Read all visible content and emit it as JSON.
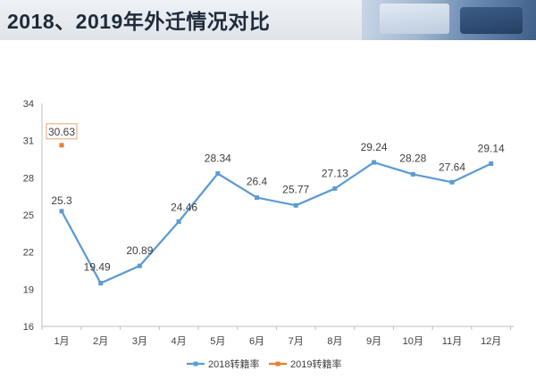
{
  "page": {
    "title": "2018、2019年外迁情况对比"
  },
  "colors": {
    "series_2018": "#5b9bd5",
    "series_2019": "#ed7d31",
    "axis": "#bfbfbf",
    "text": "#404040"
  },
  "chart_data": {
    "type": "line",
    "title": "",
    "xlabel": "",
    "ylabel": "",
    "categories": [
      "1月",
      "2月",
      "3月",
      "4月",
      "5月",
      "6月",
      "7月",
      "8月",
      "9月",
      "10月",
      "11月",
      "12月"
    ],
    "ylim": [
      16,
      34
    ],
    "yticks": [
      16,
      19,
      22,
      25,
      28,
      31,
      34
    ],
    "grid": false,
    "legend_position": "bottom",
    "series": [
      {
        "name": "2018转籍率",
        "color": "#5b9bd5",
        "values": [
          25.3,
          19.49,
          20.89,
          24.46,
          28.34,
          26.4,
          25.77,
          27.13,
          29.24,
          28.28,
          27.64,
          29.14
        ],
        "labels": [
          "25.3",
          "19.49",
          "20.89",
          "24.46",
          "28.34",
          "26.4",
          "25.77",
          "27.13",
          "29.24",
          "28.28",
          "27.64",
          "29.14"
        ]
      },
      {
        "name": "2019转籍率",
        "color": "#ed7d31",
        "values": [
          30.63,
          null,
          null,
          null,
          null,
          null,
          null,
          null,
          null,
          null,
          null,
          null
        ],
        "labels": [
          "30.63"
        ]
      }
    ]
  }
}
